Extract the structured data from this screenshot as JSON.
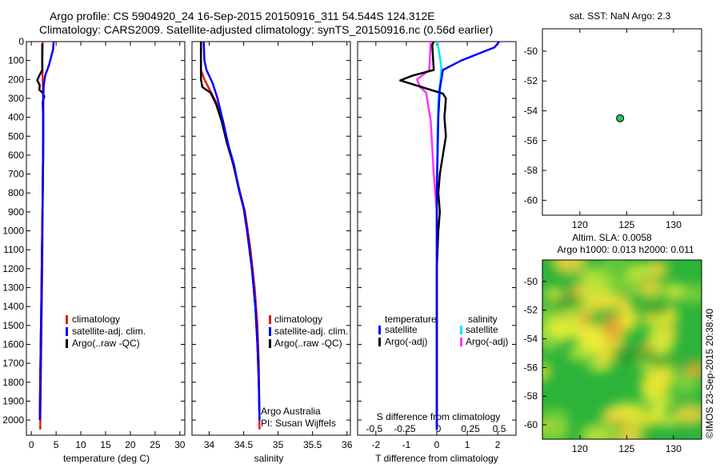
{
  "header": {
    "line1": "Argo profile: CS 5904920_24 16-Sep-2015 20150916_311 54.544S 124.312E",
    "line2": "Climatology: CARS2009. Satellite-adjusted climatology: synTS_20150916.nc (0.56d earlier)"
  },
  "colors": {
    "climatology": "#e41a1c",
    "satellite": "#0000ff",
    "argo": "#000000",
    "satellite_s": "#00e5ff",
    "argo_s": "#ff33ff",
    "dot": "#22c55e"
  },
  "chart_data": [
    {
      "id": "temperature",
      "type": "line",
      "xlabel": "temperature (deg C)",
      "xlim": [
        -1,
        31
      ],
      "xticks": [
        0,
        5,
        10,
        15,
        20,
        25,
        30
      ],
      "ylim": [
        0,
        2080
      ],
      "yticks": [
        0,
        100,
        200,
        300,
        400,
        500,
        600,
        700,
        800,
        900,
        1000,
        1100,
        1200,
        1300,
        1400,
        1500,
        1600,
        1700,
        1800,
        1900,
        2000
      ],
      "legend": [
        "climatology",
        "satellite-adj. clim.",
        "Argo(..raw -QC)"
      ],
      "series": [
        {
          "name": "climatology",
          "color": "#e41a1c",
          "points": [
            [
              2.3,
              0
            ],
            [
              2.2,
              100
            ],
            [
              2.3,
              200
            ],
            [
              2.4,
              300
            ],
            [
              2.4,
              500
            ],
            [
              2.3,
              800
            ],
            [
              2.2,
              1200
            ],
            [
              2.0,
              1600
            ],
            [
              1.8,
              2050
            ]
          ]
        },
        {
          "name": "Argo(..raw -QC)",
          "color": "#000000",
          "points": [
            [
              2.2,
              10
            ],
            [
              2.2,
              150
            ],
            [
              1.5,
              185
            ],
            [
              1.2,
              205
            ],
            [
              1.7,
              230
            ],
            [
              1.6,
              255
            ],
            [
              2.3,
              270
            ],
            [
              2.6,
              290
            ],
            [
              2.3,
              320
            ],
            [
              2.4,
              400
            ],
            [
              2.4,
              600
            ],
            [
              2.3,
              800
            ],
            [
              2.2,
              1000
            ],
            [
              2.1,
              1200
            ],
            [
              2.0,
              1400
            ],
            [
              1.9,
              1600
            ],
            [
              1.8,
              1800
            ],
            [
              1.7,
              2000
            ]
          ]
        },
        {
          "name": "satellite-adj. clim.",
          "color": "#0000ff",
          "points": [
            [
              4.5,
              0
            ],
            [
              4.4,
              40
            ],
            [
              3.6,
              120
            ],
            [
              2.8,
              180
            ],
            [
              2.5,
              230
            ],
            [
              2.4,
              300
            ],
            [
              2.4,
              500
            ],
            [
              2.3,
              800
            ],
            [
              2.2,
              1000
            ],
            [
              2.1,
              1200
            ],
            [
              2.0,
              1400
            ],
            [
              1.9,
              1600
            ],
            [
              1.8,
              1800
            ],
            [
              1.7,
              2000
            ]
          ]
        }
      ]
    },
    {
      "id": "salinity",
      "type": "line",
      "xlabel": "salinity",
      "xlim": [
        33.75,
        36.05
      ],
      "xticks": [
        34,
        34.5,
        35,
        35.5,
        36
      ],
      "ylim": [
        0,
        2080
      ],
      "legend": [
        "climatology",
        "satellite-adj. clim.",
        "Argo(..raw -QC)"
      ],
      "note_lines": [
        "Argo Australia",
        "PI: Susan Wijffels"
      ],
      "series": [
        {
          "name": "climatology",
          "color": "#e41a1c",
          "points": [
            [
              33.88,
              0
            ],
            [
              33.88,
              150
            ],
            [
              33.93,
              200
            ],
            [
              34.0,
              250
            ],
            [
              34.1,
              320
            ],
            [
              34.2,
              420
            ],
            [
              34.28,
              550
            ],
            [
              34.35,
              650
            ],
            [
              34.45,
              800
            ],
            [
              34.52,
              900
            ],
            [
              34.6,
              1100
            ],
            [
              34.66,
              1300
            ],
            [
              34.7,
              1500
            ],
            [
              34.72,
              1700
            ],
            [
              34.73,
              2050
            ]
          ]
        },
        {
          "name": "Argo(..raw -QC)",
          "color": "#000000",
          "points": [
            [
              33.88,
              0
            ],
            [
              33.88,
              200
            ],
            [
              33.9,
              240
            ],
            [
              34.02,
              270
            ],
            [
              34.1,
              330
            ],
            [
              34.18,
              420
            ],
            [
              34.26,
              540
            ],
            [
              34.35,
              650
            ],
            [
              34.43,
              780
            ],
            [
              34.5,
              880
            ],
            [
              34.55,
              1000
            ],
            [
              34.62,
              1200
            ],
            [
              34.67,
              1400
            ],
            [
              34.7,
              1600
            ],
            [
              34.72,
              1800
            ],
            [
              34.73,
              2000
            ]
          ]
        },
        {
          "name": "satellite-adj. clim.",
          "color": "#0000ff",
          "points": [
            [
              33.92,
              0
            ],
            [
              33.93,
              100
            ],
            [
              33.96,
              150
            ],
            [
              34.05,
              220
            ],
            [
              34.12,
              300
            ],
            [
              34.2,
              420
            ],
            [
              34.28,
              550
            ],
            [
              34.36,
              650
            ],
            [
              34.43,
              780
            ],
            [
              34.5,
              880
            ],
            [
              34.55,
              1000
            ],
            [
              34.62,
              1200
            ],
            [
              34.67,
              1400
            ],
            [
              34.7,
              1600
            ],
            [
              34.72,
              1800
            ],
            [
              34.73,
              2000
            ]
          ]
        }
      ]
    },
    {
      "id": "difference",
      "type": "line",
      "xlabel": "T difference from climatology",
      "xlim": [
        -2.6,
        2.6
      ],
      "xticks": [
        -2,
        -1,
        0,
        1,
        2
      ],
      "top_label": "S difference from climatology",
      "top_ticks": [
        -0.5,
        -0.25,
        0,
        0.25,
        0.5
      ],
      "top_tick_labels": [
        "-0.5",
        "-0.25",
        "0",
        "0.25",
        "0.5"
      ],
      "ylim": [
        0,
        2080
      ],
      "legend_titles": [
        "temperature",
        "salinity"
      ],
      "legend": [
        "satellite",
        "Argo(-adj)",
        "satellite",
        "Argo(-adj)"
      ],
      "series": [
        {
          "name": "satellite",
          "group": "salinity",
          "color": "#00e5ff",
          "points": [
            [
              0.02,
              0
            ],
            [
              0.1,
              80
            ],
            [
              0.15,
              140
            ],
            [
              0.12,
              200
            ],
            [
              0.05,
              300
            ],
            [
              0.02,
              500
            ],
            [
              0.0,
              800
            ],
            [
              0.0,
              1000
            ],
            [
              0.0,
              1500
            ],
            [
              0.0,
              2050
            ]
          ]
        },
        {
          "name": "Argo(-adj)",
          "group": "salinity",
          "color": "#ff33ff",
          "points": [
            [
              -0.2,
              0
            ],
            [
              -0.25,
              150
            ],
            [
              -0.65,
              200
            ],
            [
              -0.55,
              240
            ],
            [
              -0.35,
              270
            ],
            [
              -0.3,
              320
            ],
            [
              -0.2,
              420
            ],
            [
              -0.15,
              560
            ],
            [
              -0.1,
              700
            ],
            [
              -0.05,
              800
            ],
            [
              0.0,
              900
            ],
            [
              0.0,
              1100
            ],
            [
              0.0,
              2050
            ]
          ]
        },
        {
          "name": "Argo(-adj)",
          "group": "temperature",
          "color": "#000000",
          "points": [
            [
              -0.1,
              0
            ],
            [
              -0.15,
              20
            ],
            [
              -0.1,
              150
            ],
            [
              -0.8,
              180
            ],
            [
              -1.2,
              205
            ],
            [
              -0.7,
              230
            ],
            [
              0.2,
              275
            ],
            [
              0.3,
              300
            ],
            [
              0.25,
              400
            ],
            [
              0.3,
              500
            ],
            [
              0.2,
              600
            ],
            [
              0.1,
              700
            ],
            [
              0.05,
              800
            ],
            [
              0.1,
              900
            ],
            [
              0.05,
              1000
            ],
            [
              0.0,
              1200
            ],
            [
              0.0,
              2050
            ]
          ]
        },
        {
          "name": "satellite",
          "group": "temperature",
          "color": "#0000ff",
          "points": [
            [
              2.05,
              0
            ],
            [
              1.9,
              30
            ],
            [
              0.8,
              100
            ],
            [
              0.2,
              150
            ],
            [
              0.1,
              250
            ],
            [
              0.05,
              400
            ],
            [
              0.0,
              800
            ],
            [
              0.0,
              1200
            ],
            [
              0.0,
              2050
            ]
          ]
        }
      ]
    },
    {
      "id": "position",
      "type": "scatter",
      "title": "sat. SST: NaN Argo: 2.3",
      "xlim": [
        116,
        133
      ],
      "xticks": [
        120,
        125,
        130
      ],
      "ylim": [
        -61,
        -48.5
      ],
      "yticks": [
        -60,
        -58,
        -56,
        -54,
        -52,
        -50
      ],
      "points": [
        [
          124.3,
          -54.5
        ]
      ]
    },
    {
      "id": "sla",
      "type": "heatmap",
      "title_lines": [
        "Altim. SLA: 0.0058",
        "Argo h1000: 0.013 h2000: 0.011"
      ],
      "xlim": [
        116,
        133
      ],
      "xticks": [
        120,
        125,
        130
      ],
      "ylim": [
        -61,
        -48.5
      ],
      "yticks": [
        -60,
        -58,
        -56,
        -54,
        -52,
        -50
      ],
      "side_label": "©IMOS 23-Sep-2015 20:38:40"
    }
  ]
}
